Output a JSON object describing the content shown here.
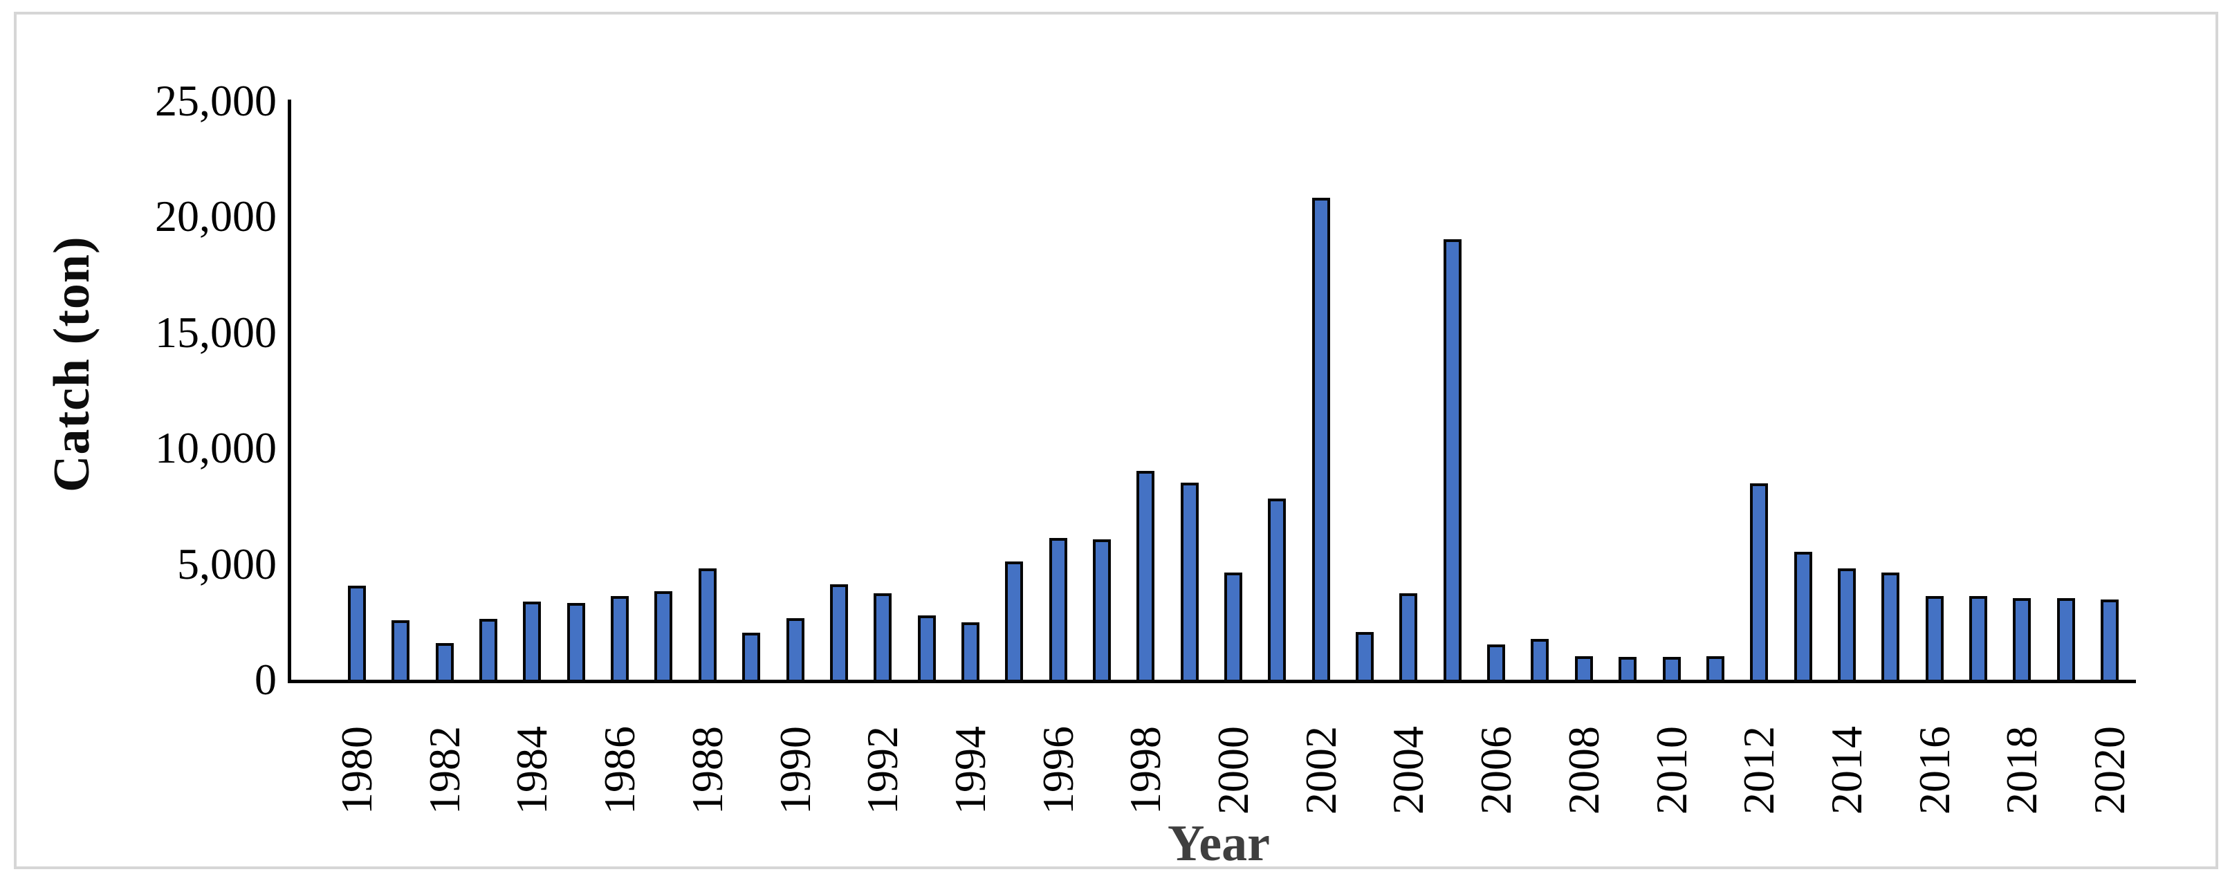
{
  "figure": {
    "background": "#FFFFFF",
    "frame_border_color": "#D6D6D6"
  },
  "chart_data": {
    "type": "bar",
    "title": "",
    "xlabel": "Year",
    "ylabel": "Catch (ton)",
    "x": [
      1980,
      1981,
      1982,
      1983,
      1984,
      1985,
      1986,
      1987,
      1988,
      1989,
      1990,
      1991,
      1992,
      1993,
      1994,
      1995,
      1996,
      1997,
      1998,
      1999,
      2000,
      2001,
      2002,
      2003,
      2004,
      2005,
      2006,
      2007,
      2008,
      2009,
      2010,
      2011,
      2012,
      2013,
      2014,
      2015,
      2016,
      2017,
      2018,
      2019,
      2020
    ],
    "values": [
      3950,
      2450,
      1450,
      2500,
      3250,
      3200,
      3500,
      3700,
      4700,
      1900,
      2550,
      4000,
      3600,
      2650,
      2350,
      5000,
      6000,
      5950,
      8900,
      8400,
      4500,
      7700,
      20700,
      1950,
      3600,
      18900,
      1400,
      1650,
      900,
      870,
      880,
      890,
      8350,
      5400,
      4700,
      4500,
      3500,
      3500,
      3400,
      3400,
      3350
    ],
    "ylim": [
      0,
      25000
    ],
    "y_tick_values": [
      0,
      5000,
      10000,
      15000,
      20000,
      25000
    ],
    "y_tick_labels": [
      "0",
      "5,000",
      "10,000",
      "15,000",
      "20,000",
      "25,000"
    ],
    "x_tick_years": [
      1980,
      1982,
      1984,
      1986,
      1988,
      1990,
      1992,
      1994,
      1996,
      1998,
      2000,
      2002,
      2004,
      2006,
      2008,
      2010,
      2012,
      2014,
      2016,
      2018,
      2020
    ],
    "grid": false,
    "legend_position": "none",
    "bar_fill_color": "#4472C4",
    "bar_border_color": "#000000",
    "axis_color": "#000000",
    "x_title_color": "#3F3F3F",
    "y_title_color": "#0D0D0D"
  }
}
